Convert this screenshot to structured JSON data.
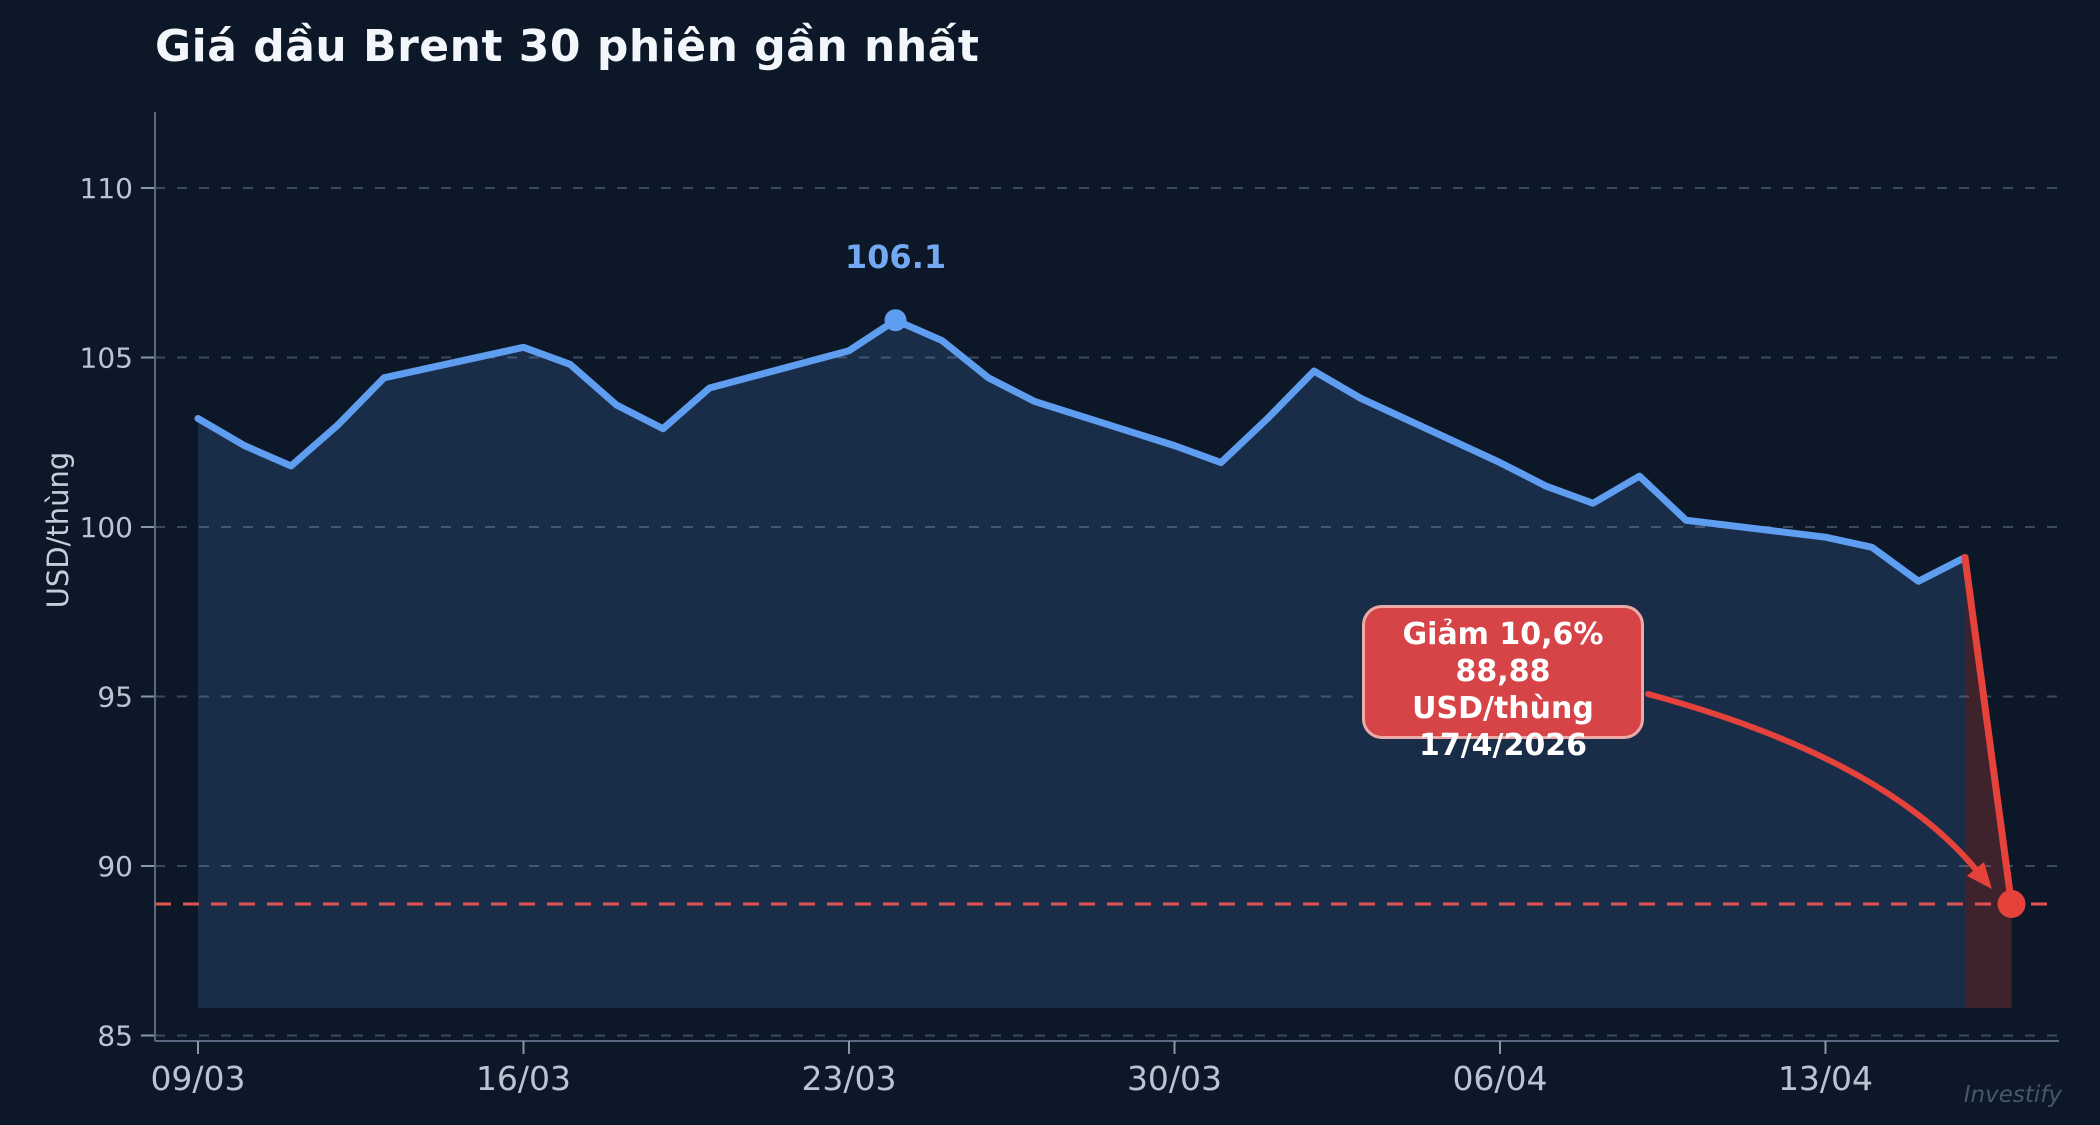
{
  "chart_data": {
    "type": "area",
    "title": "Giá dầu Brent 30 phiên gần nhất",
    "ylabel": "USD/thùng",
    "ylim": [
      85,
      110
    ],
    "grid": true,
    "y_ticks": [
      110,
      105,
      100,
      95,
      90,
      85
    ],
    "x_ticks": [
      {
        "label": "09/03",
        "day": 0
      },
      {
        "label": "16/03",
        "day": 7
      },
      {
        "label": "23/03",
        "day": 14
      },
      {
        "label": "30/03",
        "day": 21
      },
      {
        "label": "06/04",
        "day": 28
      },
      {
        "label": "13/04",
        "day": 35
      }
    ],
    "series": [
      {
        "name": "Brent",
        "points": [
          {
            "date": "09/03",
            "day": 0,
            "value": 103.2
          },
          {
            "date": "10/03",
            "day": 1,
            "value": 102.4
          },
          {
            "date": "11/03",
            "day": 2,
            "value": 101.8
          },
          {
            "date": "12/03",
            "day": 3,
            "value": 103.0
          },
          {
            "date": "13/03",
            "day": 4,
            "value": 104.4
          },
          {
            "date": "16/03",
            "day": 7,
            "value": 105.3
          },
          {
            "date": "17/03",
            "day": 8,
            "value": 104.8
          },
          {
            "date": "18/03",
            "day": 9,
            "value": 103.6
          },
          {
            "date": "19/03",
            "day": 10,
            "value": 102.9
          },
          {
            "date": "20/03",
            "day": 11,
            "value": 104.1
          },
          {
            "date": "23/03",
            "day": 14,
            "value": 105.2
          },
          {
            "date": "24/03",
            "day": 15,
            "value": 106.1
          },
          {
            "date": "25/03",
            "day": 16,
            "value": 105.5
          },
          {
            "date": "26/03",
            "day": 17,
            "value": 104.4
          },
          {
            "date": "27/03",
            "day": 18,
            "value": 103.7
          },
          {
            "date": "30/03",
            "day": 21,
            "value": 102.4
          },
          {
            "date": "31/03",
            "day": 22,
            "value": 101.9
          },
          {
            "date": "01/04",
            "day": 23,
            "value": 103.2
          },
          {
            "date": "02/04",
            "day": 24,
            "value": 104.6
          },
          {
            "date": "03/04",
            "day": 25,
            "value": 103.8
          },
          {
            "date": "06/04",
            "day": 28,
            "value": 101.9
          },
          {
            "date": "07/04",
            "day": 29,
            "value": 101.2
          },
          {
            "date": "08/04",
            "day": 30,
            "value": 100.7
          },
          {
            "date": "09/04",
            "day": 31,
            "value": 101.5
          },
          {
            "date": "10/04",
            "day": 32,
            "value": 100.2
          },
          {
            "date": "13/04",
            "day": 35,
            "value": 99.7
          },
          {
            "date": "14/04",
            "day": 36,
            "value": 99.4
          },
          {
            "date": "15/04",
            "day": 37,
            "value": 98.4
          },
          {
            "date": "16/04",
            "day": 38,
            "value": 99.1
          },
          {
            "date": "17/04",
            "day": 39,
            "value": 88.88
          }
        ]
      }
    ],
    "peak_annotation": {
      "label": "106.1",
      "date": "24/03",
      "day": 15,
      "value": 106.1
    },
    "crash_point": {
      "date": "17/4/2026",
      "day": 39,
      "value": 88.88
    },
    "reference_line": {
      "value": 88.88
    },
    "callout": {
      "lines": [
        "Giảm 10,6%",
        "88,88 USD/thùng",
        "17/4/2026"
      ]
    },
    "watermark": "Investify",
    "legend_position": "none",
    "colors": {
      "background": "#0c1827",
      "line": "#5f9df0",
      "area_fill": "rgba(95,157,242,0.17)",
      "grid": "#3a4a60",
      "tick_mark": "#8a95a5",
      "spine": "#596a80",
      "tick_label": "#b9c5d3",
      "title": "#f3f6fa",
      "peak_label": "#72a9f2",
      "crash_red": "#e6423c",
      "crash_band": "rgba(226,70,64,0.24)",
      "reference_red": "#e05252",
      "callout_bg": "#d64447",
      "callout_border": "#eeaaa7",
      "watermark": "#46566d"
    }
  }
}
